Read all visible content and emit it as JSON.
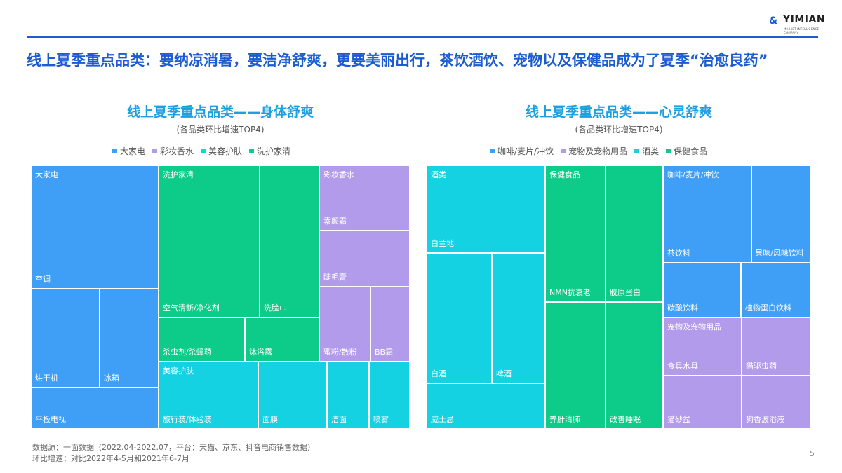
{
  "logo": {
    "text": "YIMIAN",
    "sub": "MARKET INTELLIGENCE COMPANY"
  },
  "headline": "线上夏季重点品类：要纳凉消暑，要洁净舒爽，更要美丽出行，茶饮酒饮、宠物以及保健品成为了夏季“治愈良药”",
  "colors": {
    "blue": "#3f9ef5",
    "purple": "#b39bec",
    "cyan": "#15d2e3",
    "green": "#0dcc8a",
    "title_blue": "#1e9fe0",
    "rule": "#1c5bd0"
  },
  "footnote": {
    "line1": "数据源：一面数据（2022.04-2022.07，平台：天猫、京东、抖音电商销售数据）",
    "line2": "环比增速：对比2022年4-5月和2021年6-7月"
  },
  "page_number": "5",
  "chart_data": [
    {
      "type": "treemap",
      "title": "线上夏季重点品类——身体舒爽",
      "subtitle": "(各品类环比增速TOP4)",
      "legend": [
        {
          "name": "大家电",
          "color": "#3f9ef5"
        },
        {
          "name": "彩妆香水",
          "color": "#b39bec"
        },
        {
          "name": "美容护肤",
          "color": "#15d2e3"
        },
        {
          "name": "洗护家清",
          "color": "#0dcc8a"
        }
      ],
      "groups": [
        {
          "name": "大家电",
          "color": "#3f9ef5",
          "items": [
            "空调",
            "烘干机",
            "冰箱",
            "平板电视"
          ]
        },
        {
          "name": "洗护家清",
          "color": "#0dcc8a",
          "items": [
            "空气清新/净化剂",
            "洗脸巾",
            "杀虫剂/杀蟑药",
            "沐浴露"
          ]
        },
        {
          "name": "美容护肤",
          "color": "#15d2e3",
          "items": [
            "旅行装/体验装",
            "面膜",
            "洁面",
            "喷雾"
          ]
        },
        {
          "name": "彩妆香水",
          "color": "#b39bec",
          "items": [
            "素颜霜",
            "睫毛膏",
            "蜜粉/散粉",
            "BB霜"
          ]
        }
      ]
    },
    {
      "type": "treemap",
      "title": "线上夏季重点品类——心灵舒爽",
      "subtitle": "(各品类环比增速TOP4)",
      "legend": [
        {
          "name": "咖啡/麦片/冲饮",
          "color": "#3f9ef5"
        },
        {
          "name": "宠物及宠物用品",
          "color": "#b39bec"
        },
        {
          "name": "酒类",
          "color": "#15d2e3"
        },
        {
          "name": "保健食品",
          "color": "#0dcc8a"
        }
      ],
      "groups": [
        {
          "name": "酒类",
          "color": "#15d2e3",
          "items": [
            "白兰地",
            "白酒",
            "啤酒",
            "威士忌"
          ]
        },
        {
          "name": "保健食品",
          "color": "#0dcc8a",
          "items": [
            "NMN抗衰老",
            "胶原蛋白",
            "养肝清肺",
            "改善睡眠"
          ]
        },
        {
          "name": "咖啡/麦片/冲饮",
          "color": "#3f9ef5",
          "items": [
            "茶饮料",
            "果味/风味饮料",
            "碳酸饮料",
            "植物蛋白饮料"
          ]
        },
        {
          "name": "宠物及宠物用品",
          "color": "#b39bec",
          "items": [
            "食具水具",
            "猫驱虫药",
            "猫砂盆",
            "狗香波浴液"
          ]
        }
      ]
    }
  ]
}
